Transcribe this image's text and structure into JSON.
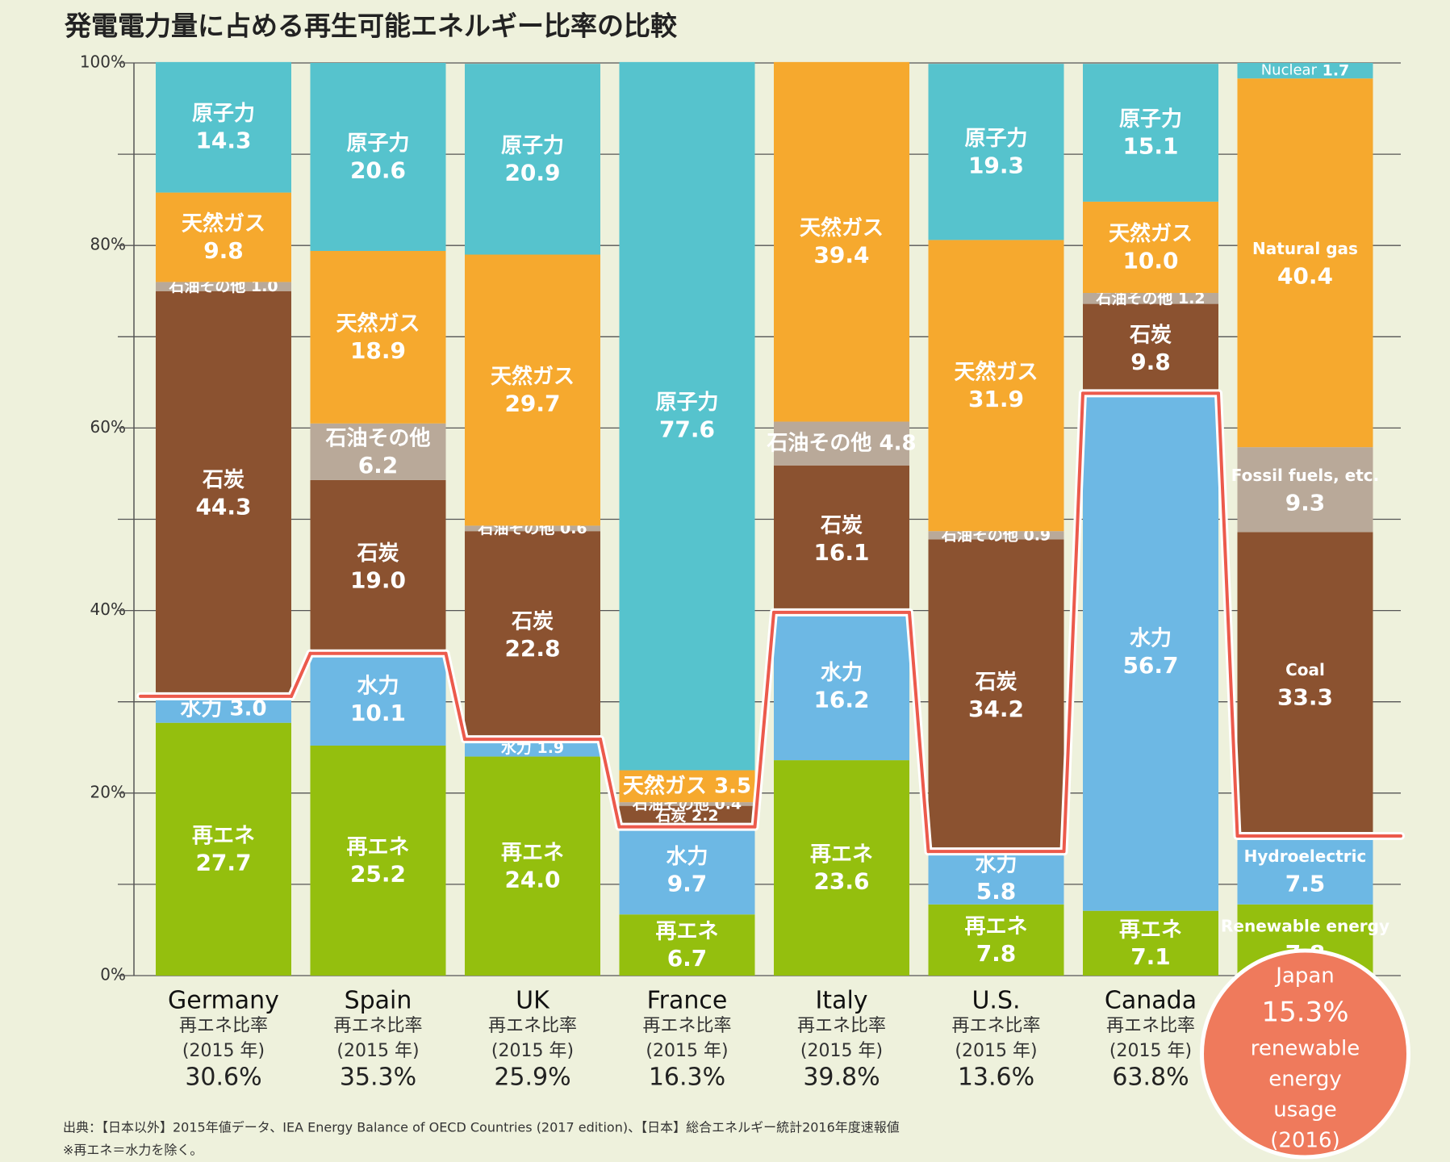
{
  "chart_data": {
    "type": "stacked-bar",
    "title": "発電電力量に占める再生可能エネルギー比率の比較",
    "categories": [
      "Germany",
      "Spain",
      "UK",
      "France",
      "Italy",
      "U.S.",
      "Canada",
      "Japan"
    ],
    "series": [
      {
        "name": "再エネ",
        "color": "#94bf0e",
        "values": [
          27.7,
          25.2,
          24.0,
          6.7,
          23.6,
          7.8,
          7.1,
          7.8
        ],
        "value_labels": [
          "27.7",
          "25.2",
          "24.0",
          "6.7",
          "23.6",
          "7.8",
          "7.1",
          "7.8"
        ]
      },
      {
        "name": "水力",
        "color": "#6db8e4",
        "values": [
          3.0,
          10.1,
          1.9,
          9.7,
          16.2,
          5.8,
          56.7,
          7.5
        ],
        "value_labels": [
          "3.0",
          "10.1",
          "1.9",
          "9.7",
          "16.2",
          "5.8",
          "56.7",
          "7.5"
        ]
      },
      {
        "name": "石炭",
        "color": "#8b5230",
        "values": [
          44.3,
          19.0,
          22.8,
          2.2,
          16.1,
          34.2,
          9.8,
          33.3
        ],
        "value_labels": [
          "44.3",
          "19.0",
          "22.8",
          "2.2",
          "16.1",
          "34.2",
          "9.8",
          "33.3"
        ]
      },
      {
        "name": "石油その他",
        "color": "#b9a999",
        "values": [
          1.0,
          6.2,
          0.6,
          0.4,
          4.8,
          0.9,
          1.2,
          9.3
        ],
        "value_labels": [
          "1.0",
          "6.2",
          "0.6",
          "0.4",
          "4.8",
          "0.9",
          "1.2",
          "9.3"
        ]
      },
      {
        "name": "天然ガス",
        "color": "#f6a92e",
        "values": [
          9.8,
          18.9,
          29.7,
          3.5,
          39.4,
          31.9,
          10.0,
          40.4
        ],
        "value_labels": [
          "9.8",
          "18.9",
          "29.7",
          "3.5",
          "39.4",
          "31.9",
          "10.0",
          "40.4"
        ]
      },
      {
        "name": "原子力",
        "color": "#56c3cd",
        "values": [
          14.3,
          20.6,
          20.9,
          77.6,
          null,
          19.3,
          15.1,
          1.7
        ],
        "value_labels": [
          "14.3",
          "20.6",
          "20.9",
          "77.6",
          null,
          "19.3",
          "15.1",
          "1.7"
        ]
      }
    ],
    "japan_labels": [
      "Renewable energy",
      "Hydroelectric",
      "Coal",
      "Fossil fuels, etc.",
      "Natural gas",
      "Nuclear"
    ],
    "ratios": [
      30.6,
      35.3,
      25.9,
      16.3,
      39.8,
      13.6,
      63.8,
      15.3
    ],
    "ratio_labels": [
      "30.6%",
      "35.3%",
      "25.9%",
      "16.3%",
      "39.8%",
      "13.6%",
      "63.8%",
      "15.3%"
    ],
    "ratio_color": "#ec5a4c",
    "ratio_caption": [
      "再エネ比率",
      "(2015 年)"
    ],
    "japan_caption": [
      "renewable",
      "energy",
      "usage",
      "(2016)"
    ],
    "ylim": [
      0,
      100
    ],
    "yticks": [
      {
        "value": 0,
        "label": "0%"
      },
      {
        "value": 20,
        "label": "20%"
      },
      {
        "value": 40,
        "label": "40%"
      },
      {
        "value": 60,
        "label": "60%"
      },
      {
        "value": 80,
        "label": "80%"
      },
      {
        "value": 100,
        "label": "100%"
      }
    ],
    "minor_yticks": [
      10,
      30,
      50,
      70,
      90
    ],
    "grid": true,
    "footnotes": [
      "出典：【日本以外】2015年値データ、IEA Energy Balance of OECD Countries (2017 edition)、【日本】総合エネルギー統計2016年度速報値",
      "※再エネ＝水力を除く。"
    ]
  }
}
